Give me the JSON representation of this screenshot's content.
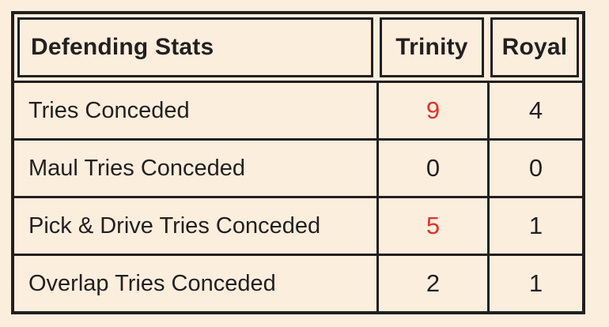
{
  "chart_data": {
    "type": "table",
    "title": "Defending Stats",
    "columns": [
      "Defending Stats",
      "Trinity",
      "Royal"
    ],
    "rows": [
      [
        "Tries Conceded",
        9,
        4
      ],
      [
        "Maul Tries Conceded",
        0,
        0
      ],
      [
        "Pick & Drive Tries Conceded",
        5,
        1
      ],
      [
        "Overlap Tries Conceded",
        2,
        1
      ]
    ],
    "highlighted_cells": [
      {
        "row": "Tries Conceded",
        "column": "Trinity",
        "value": 9,
        "color": "#e2322b"
      },
      {
        "row": "Pick & Drive Tries Conceded",
        "column": "Trinity",
        "value": 5,
        "color": "#e2322b"
      }
    ],
    "legend_position": "none",
    "grid": "on"
  },
  "table": {
    "header": {
      "title": "Defending Stats",
      "col_trinity": "Trinity",
      "col_royal": "Royal"
    },
    "rows": [
      {
        "label": "Tries Conceded",
        "trinity": "9",
        "trinity_color": "#e2322b",
        "royal": "4",
        "royal_color": "#231f20"
      },
      {
        "label": "Maul Tries Conceded",
        "trinity": "0",
        "trinity_color": "#231f20",
        "royal": "0",
        "royal_color": "#231f20"
      },
      {
        "label": "Pick & Drive Tries Conceded",
        "trinity": "5",
        "trinity_color": "#e2322b",
        "royal": "1",
        "royal_color": "#231f20"
      },
      {
        "label": "Overlap Tries Conceded",
        "trinity": "2",
        "trinity_color": "#231f20",
        "royal": "1",
        "royal_color": "#231f20"
      }
    ],
    "colors": {
      "background": "#fceedd",
      "border": "#231f20",
      "text": "#231f20",
      "highlight": "#e2322b"
    }
  }
}
